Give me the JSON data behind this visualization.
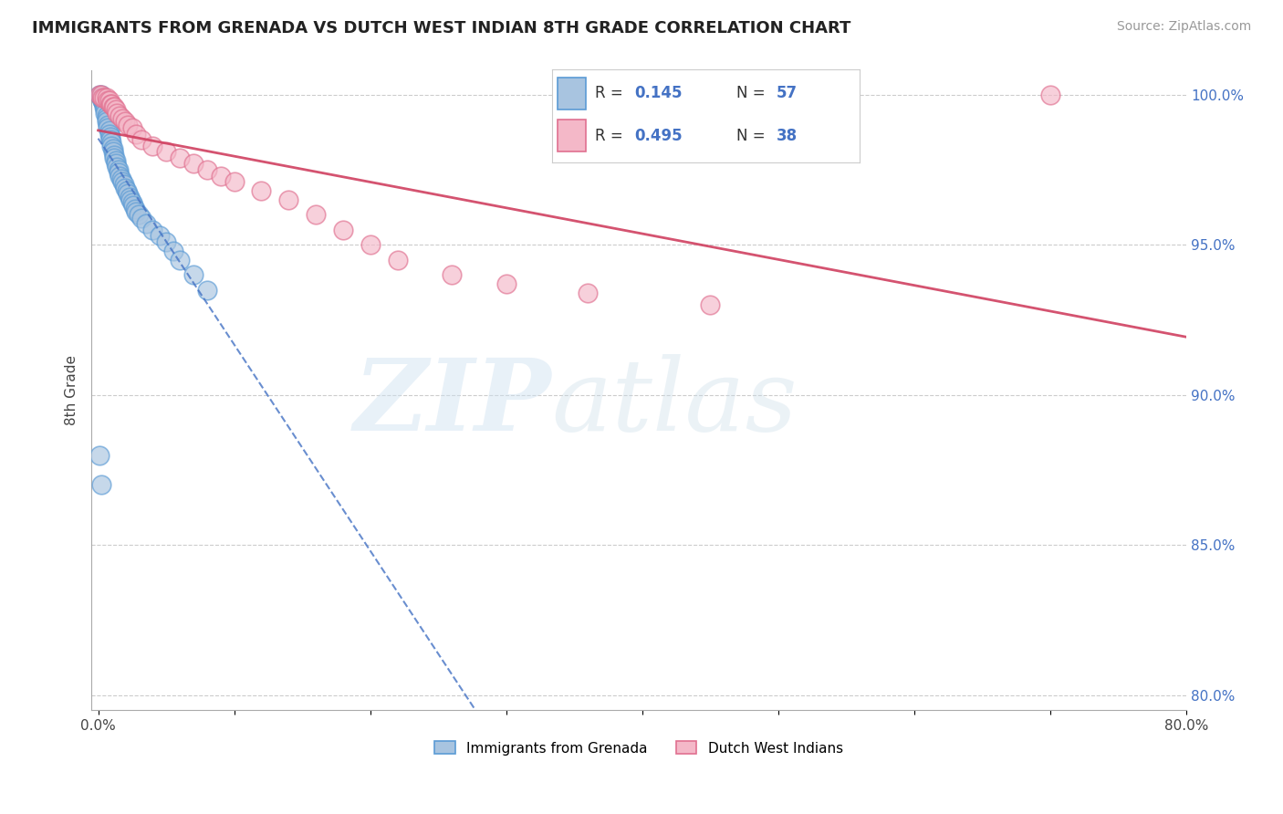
{
  "title": "IMMIGRANTS FROM GRENADA VS DUTCH WEST INDIAN 8TH GRADE CORRELATION CHART",
  "source": "Source: ZipAtlas.com",
  "ylabel": "8th Grade",
  "xlim": [
    -0.005,
    0.8
  ],
  "ylim": [
    0.795,
    1.008
  ],
  "yticks": [
    0.8,
    0.85,
    0.9,
    0.95,
    1.0
  ],
  "ytick_labels": [
    "80.0%",
    "85.0%",
    "90.0%",
    "95.0%",
    "100.0%"
  ],
  "xtick_positions": [
    0.0,
    0.1,
    0.2,
    0.3,
    0.4,
    0.5,
    0.6,
    0.7,
    0.8
  ],
  "xtick_labels": [
    "0.0%",
    "",
    "",
    "",
    "",
    "",
    "",
    "",
    "80.0%"
  ],
  "blue_color": "#a8c4e0",
  "blue_edge": "#5b9bd5",
  "pink_color": "#f4b8c8",
  "pink_edge": "#e07090",
  "blue_line_color": "#4472c4",
  "pink_line_color": "#d04060",
  "legend_r1": "0.145",
  "legend_n1": "57",
  "legend_r2": "0.495",
  "legend_n2": "38",
  "blue_scatter_x": [
    0.001,
    0.002,
    0.002,
    0.003,
    0.003,
    0.003,
    0.004,
    0.004,
    0.004,
    0.005,
    0.005,
    0.005,
    0.006,
    0.006,
    0.006,
    0.007,
    0.007,
    0.008,
    0.008,
    0.009,
    0.009,
    0.01,
    0.01,
    0.011,
    0.011,
    0.012,
    0.012,
    0.013,
    0.013,
    0.014,
    0.015,
    0.015,
    0.016,
    0.017,
    0.018,
    0.019,
    0.02,
    0.021,
    0.022,
    0.023,
    0.024,
    0.025,
    0.026,
    0.027,
    0.028,
    0.03,
    0.032,
    0.035,
    0.04,
    0.045,
    0.05,
    0.055,
    0.06,
    0.07,
    0.08,
    0.001,
    0.002
  ],
  "blue_scatter_y": [
    1.0,
    1.0,
    0.999,
    0.999,
    0.998,
    0.998,
    0.997,
    0.997,
    0.996,
    0.996,
    0.995,
    0.994,
    0.993,
    0.992,
    0.991,
    0.99,
    0.989,
    0.988,
    0.987,
    0.986,
    0.985,
    0.984,
    0.983,
    0.982,
    0.981,
    0.98,
    0.979,
    0.978,
    0.977,
    0.976,
    0.975,
    0.974,
    0.973,
    0.972,
    0.971,
    0.97,
    0.969,
    0.968,
    0.967,
    0.966,
    0.965,
    0.964,
    0.963,
    0.962,
    0.961,
    0.96,
    0.959,
    0.957,
    0.955,
    0.953,
    0.951,
    0.948,
    0.945,
    0.94,
    0.935,
    0.88,
    0.87
  ],
  "pink_scatter_x": [
    0.001,
    0.002,
    0.003,
    0.004,
    0.006,
    0.007,
    0.008,
    0.009,
    0.01,
    0.011,
    0.012,
    0.013,
    0.014,
    0.016,
    0.018,
    0.02,
    0.022,
    0.025,
    0.028,
    0.032,
    0.04,
    0.05,
    0.06,
    0.07,
    0.08,
    0.09,
    0.1,
    0.12,
    0.14,
    0.16,
    0.18,
    0.2,
    0.22,
    0.26,
    0.3,
    0.36,
    0.45,
    0.7
  ],
  "pink_scatter_y": [
    1.0,
    1.0,
    0.999,
    0.999,
    0.999,
    0.998,
    0.998,
    0.997,
    0.997,
    0.996,
    0.996,
    0.995,
    0.994,
    0.993,
    0.992,
    0.991,
    0.99,
    0.989,
    0.987,
    0.985,
    0.983,
    0.981,
    0.979,
    0.977,
    0.975,
    0.973,
    0.971,
    0.968,
    0.965,
    0.96,
    0.955,
    0.95,
    0.945,
    0.94,
    0.937,
    0.934,
    0.93,
    1.0
  ]
}
